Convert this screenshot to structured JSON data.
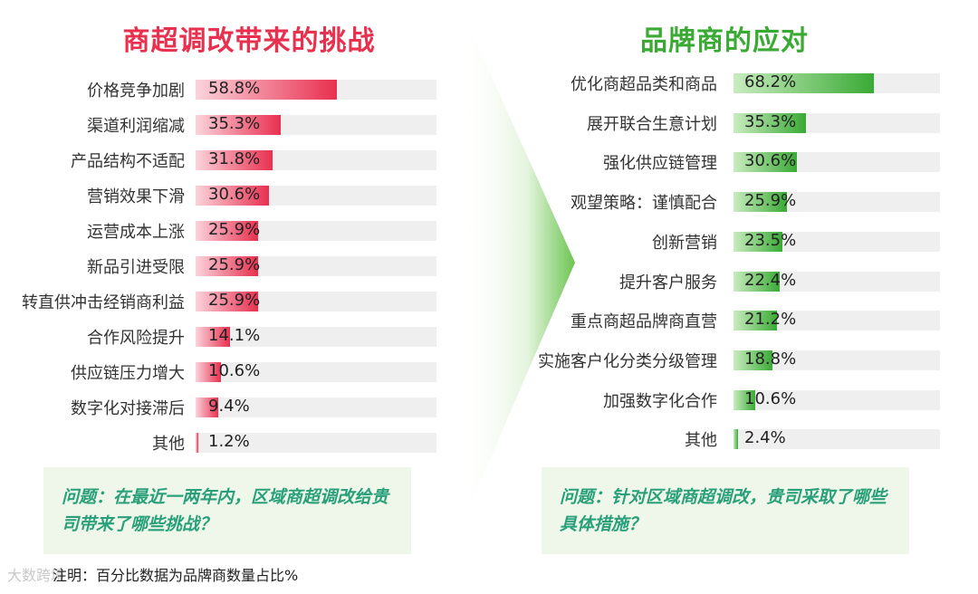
{
  "chart_data": [
    {
      "type": "bar",
      "orientation": "horizontal",
      "title": "商超调改带来的挑战",
      "categories": [
        "价格竞争加剧",
        "渠道利润缩减",
        "产品结构不适配",
        "营销效果下滑",
        "运营成本上涨",
        "新品引进受限",
        "转直供冲击经销商利益",
        "合作风险提升",
        "供应链压力增大",
        "数字化对接滞后",
        "其他"
      ],
      "values": [
        58.8,
        35.3,
        31.8,
        30.6,
        25.9,
        25.9,
        25.9,
        14.1,
        10.6,
        9.4,
        1.2
      ],
      "value_labels": [
        "58.8%",
        "35.3%",
        "31.8%",
        "30.6%",
        "25.9%",
        "25.9%",
        "25.9%",
        "14.1%",
        "10.6%",
        "9.4%",
        "1.2%"
      ],
      "xlim": [
        0,
        100
      ],
      "color": "#e8304f",
      "grid": false
    },
    {
      "type": "bar",
      "orientation": "horizontal",
      "title": "品牌商的应对",
      "categories": [
        "优化商超品类和商品",
        "展开联合生意计划",
        "强化供应链管理",
        "观望策略：谨慎配合",
        "创新营销",
        "提升客户服务",
        "重点商超品牌商直营",
        "实施客户化分类分级管理",
        "加强数字化合作",
        "其他"
      ],
      "values": [
        68.2,
        35.3,
        30.6,
        25.9,
        23.5,
        22.4,
        21.2,
        18.8,
        10.6,
        2.4
      ],
      "value_labels": [
        "68.2%",
        "35.3%",
        "30.6%",
        "25.9%",
        "23.5%",
        "22.4%",
        "21.2%",
        "18.8%",
        "10.6%",
        "2.4%"
      ],
      "xlim": [
        0,
        100
      ],
      "color": "#3aaa35",
      "grid": false
    }
  ],
  "questions": {
    "left": "问题：在最近一两年内，区域商超调改给贵司带来了哪些挑战？",
    "right": "问题：针对区域商超调改，贵司采取了哪些具体措施？"
  },
  "note": "注明：百分比数据为品牌商数量占比%",
  "watermark": "大数跨境"
}
